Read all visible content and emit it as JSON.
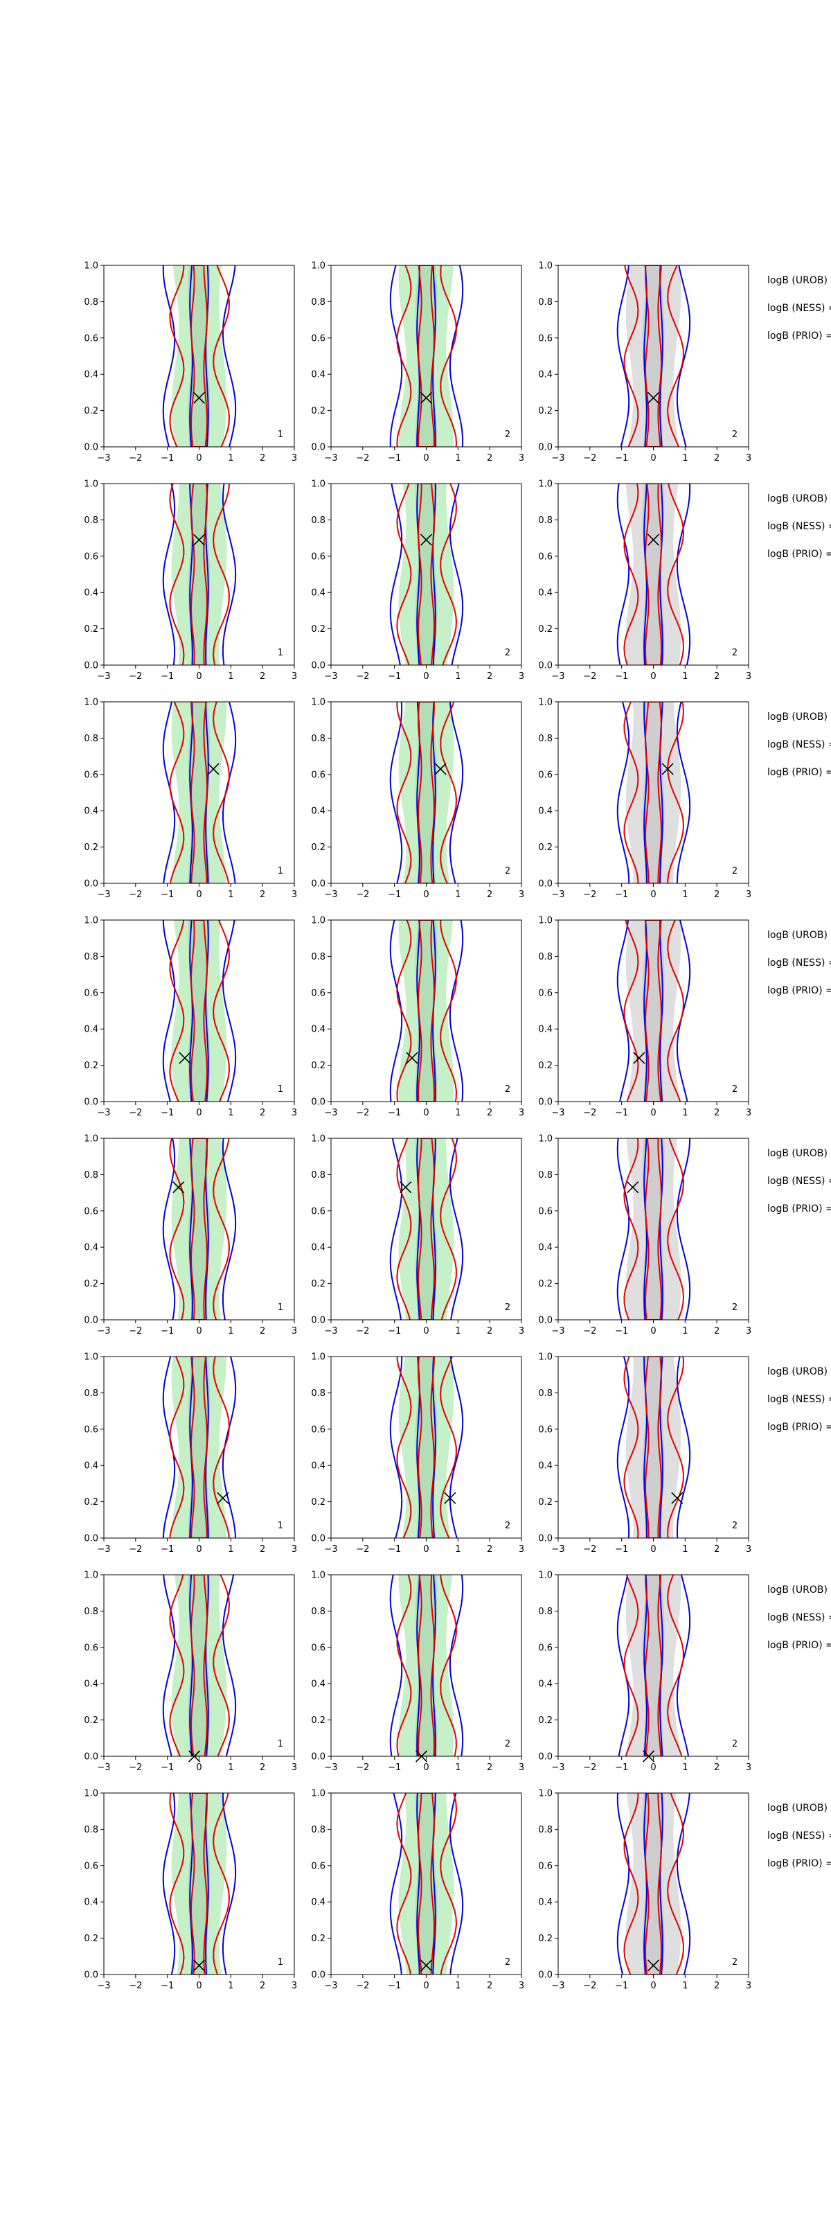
{
  "figure": {
    "background": "#ffffff"
  },
  "chart_data": {
    "type": "contour-grid",
    "rows": 8,
    "cols": 3,
    "axes": {
      "xlim": [
        -3,
        3
      ],
      "ylim": [
        0.0,
        1.0
      ],
      "xticks": [
        -3,
        -2,
        -1,
        0,
        1,
        2,
        3
      ],
      "xtick_labels": [
        "−3",
        "−2",
        "−1",
        "0",
        "1",
        "2",
        "3"
      ],
      "yticks": [
        0.0,
        0.2,
        0.4,
        0.6,
        0.8,
        1.0
      ],
      "ytick_labels": [
        "0.0",
        "0.2",
        "0.4",
        "0.6",
        "0.8",
        "1.0"
      ]
    },
    "colors": {
      "green_fill": "#bfeec2",
      "gray_fill": "#dcdcdc",
      "blue": "#0000dd",
      "red": "#e00000",
      "marker": "#000000"
    },
    "column_fill": [
      "green",
      "green",
      "gray"
    ],
    "column_labels": [
      "1",
      "2",
      "2"
    ],
    "logb_labels": [
      "logB (UROB) =",
      "logB (NESS) =",
      "logB (PRIO) ="
    ],
    "markers": [
      {
        "x": 0.0,
        "y": 0.27
      },
      {
        "x": 0.0,
        "y": 0.69
      },
      {
        "x": 0.45,
        "y": 0.63
      },
      {
        "x": -0.45,
        "y": 0.24
      },
      {
        "x": -0.65,
        "y": 0.73
      },
      {
        "x": 0.75,
        "y": 0.22
      },
      {
        "x": -0.15,
        "y": 0.0
      },
      {
        "x": 0.0,
        "y": 0.05
      }
    ]
  }
}
